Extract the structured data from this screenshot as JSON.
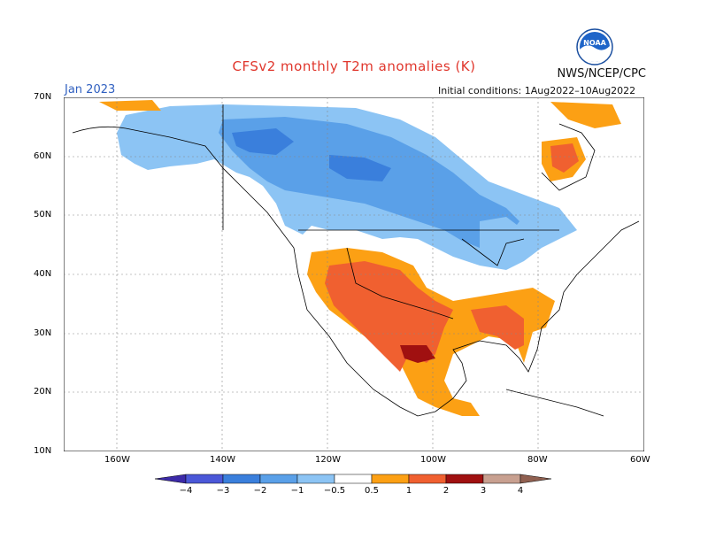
{
  "header": {
    "title": "CFSv2 monthly T2m anomalies (K)",
    "agency": "NWS/NCEP/CPC",
    "month": "Jan 2023",
    "initial_conditions": "Initial conditions: 1Aug2022–10Aug2022"
  },
  "logo": {
    "text": "NOAA",
    "icon": "noaa-logo-icon"
  },
  "axes": {
    "lat_labels": [
      "70N",
      "60N",
      "50N",
      "40N",
      "30N",
      "20N",
      "10N"
    ],
    "lon_labels": [
      "160W",
      "140W",
      "120W",
      "100W",
      "80W",
      "60W"
    ],
    "lat_range": [
      10,
      70
    ],
    "lon_range": [
      -170,
      -60
    ],
    "grid": true
  },
  "legend": {
    "ticks": [
      "−4",
      "−3",
      "−2",
      "−1",
      "−0.5",
      "0.5",
      "1",
      "2",
      "3",
      "4"
    ],
    "colors": [
      "#3c2aa8",
      "#4b58d8",
      "#3a7fdc",
      "#5aa0e8",
      "#8cc4f4",
      "#ffffff",
      "#fca014",
      "#f06030",
      "#e03020",
      "#a01010",
      "#c8a090",
      "#906050"
    ]
  }
}
